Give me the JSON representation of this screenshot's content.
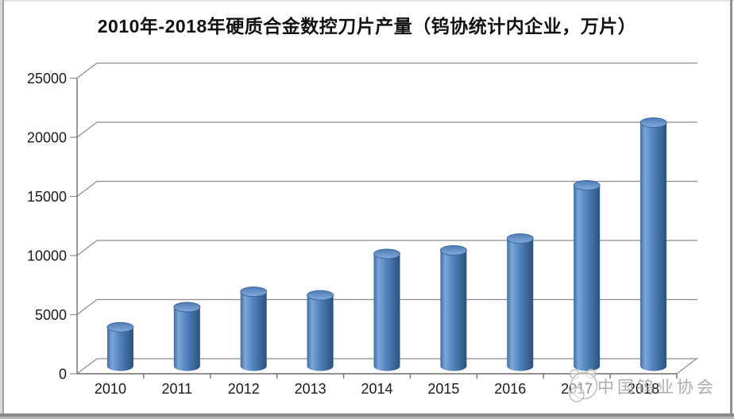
{
  "page": {
    "title": "2010年-2018年硬质合金数控刀片产量（钨协统计内企业，万片）",
    "watermark": "中国钨业协会"
  },
  "chart_data": {
    "type": "bar",
    "subtype": "3d-cylinder",
    "title": "2010年-2018年硬质合金数控刀片产量（钨协统计内企业，万片）",
    "categories": [
      "2010",
      "2011",
      "2012",
      "2013",
      "2014",
      "2015",
      "2016",
      "2017",
      "2018"
    ],
    "values": [
      3300,
      5000,
      6300,
      6000,
      9500,
      9800,
      10800,
      15300,
      20600
    ],
    "series_name": "硬质合金数控刀片产量",
    "unit": "万片",
    "xlabel": "",
    "ylabel": "",
    "ylim": [
      0,
      25000
    ],
    "yticks": [
      0,
      5000,
      10000,
      15000,
      20000,
      25000
    ],
    "grid": true,
    "legend": false,
    "bar_color": "#4f81bd",
    "watermark": "中国钨业协会"
  },
  "colors": {
    "bar_highlight": "#7ca6d9",
    "bar_mid": "#4d7fb5",
    "bar_dark": "#2b5178",
    "grid": "#8c8c8c",
    "axis": "#6f6f6f",
    "text": "#1a1a1a",
    "watermark_text": "#a9a9a9",
    "watermark_line": "#b9b9b9"
  }
}
